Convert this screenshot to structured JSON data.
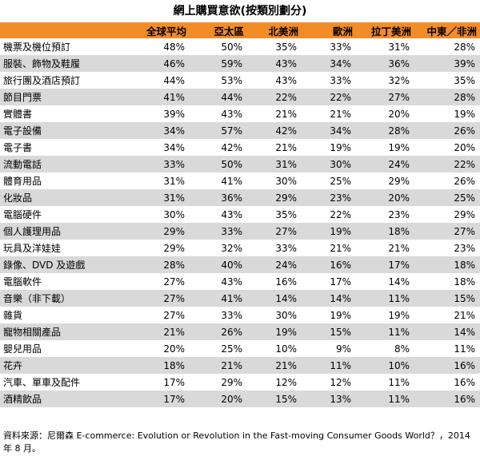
{
  "title": "網上購買意欲(按類別劃分)",
  "columns": [
    "",
    "全球平均",
    "亞太區",
    "北美洲",
    "歐洲",
    "拉丁美洲",
    "中東／非洲"
  ],
  "rows": [
    {
      "category": "機票及機位預訂",
      "values": [
        "48%",
        "50%",
        "35%",
        "33%",
        "31%",
        "28%"
      ]
    },
    {
      "category": "服裝、飾物及鞋履",
      "values": [
        "46%",
        "59%",
        "43%",
        "34%",
        "36%",
        "39%"
      ]
    },
    {
      "category": "旅行團及酒店預訂",
      "values": [
        "44%",
        "53%",
        "43%",
        "33%",
        "32%",
        "35%"
      ]
    },
    {
      "category": "節目門票",
      "values": [
        "41%",
        "44%",
        "22%",
        "22%",
        "27%",
        "28%"
      ]
    },
    {
      "category": "實體書",
      "values": [
        "39%",
        "43%",
        "21%",
        "21%",
        "20%",
        "19%"
      ]
    },
    {
      "category": "電子設備",
      "values": [
        "34%",
        "57%",
        "42%",
        "34%",
        "28%",
        "26%"
      ]
    },
    {
      "category": "電子書",
      "values": [
        "34%",
        "42%",
        "21%",
        "19%",
        "19%",
        "20%"
      ]
    },
    {
      "category": "流動電話",
      "values": [
        "33%",
        "50%",
        "31%",
        "30%",
        "24%",
        "22%"
      ]
    },
    {
      "category": "體育用品",
      "values": [
        "31%",
        "41%",
        "30%",
        "25%",
        "29%",
        "26%"
      ]
    },
    {
      "category": "化妝品",
      "values": [
        "31%",
        "36%",
        "29%",
        "23%",
        "20%",
        "25%"
      ]
    },
    {
      "category": "電腦硬件",
      "values": [
        "30%",
        "43%",
        "35%",
        "22%",
        "23%",
        "29%"
      ]
    },
    {
      "category": "個人護理用品",
      "values": [
        "29%",
        "33%",
        "27%",
        "19%",
        "18%",
        "27%"
      ]
    },
    {
      "category": "玩具及洋娃娃",
      "values": [
        "29%",
        "32%",
        "33%",
        "21%",
        "21%",
        "23%"
      ]
    },
    {
      "category": "錄像、DVD 及遊戲",
      "values": [
        "28%",
        "40%",
        "24%",
        "16%",
        "17%",
        "18%"
      ]
    },
    {
      "category": "電腦軟件",
      "values": [
        "27%",
        "43%",
        "16%",
        "17%",
        "14%",
        "18%"
      ]
    },
    {
      "category": "音樂（非下載）",
      "values": [
        "27%",
        "41%",
        "14%",
        "14%",
        "11%",
        "15%"
      ]
    },
    {
      "category": "雜貨",
      "values": [
        "27%",
        "33%",
        "30%",
        "19%",
        "19%",
        "21%"
      ]
    },
    {
      "category": "寵物相關產品",
      "values": [
        "21%",
        "26%",
        "19%",
        "15%",
        "11%",
        "14%"
      ]
    },
    {
      "category": "嬰兒用品",
      "values": [
        "20%",
        "25%",
        "10%",
        "9%",
        "8%",
        "11%"
      ]
    },
    {
      "category": "花卉",
      "values": [
        "18%",
        "21%",
        "21%",
        "11%",
        "10%",
        "16%"
      ]
    },
    {
      "category": "汽車、單車及配件",
      "values": [
        "17%",
        "29%",
        "12%",
        "12%",
        "11%",
        "16%"
      ]
    },
    {
      "category": "酒精飲品",
      "values": [
        "17%",
        "20%",
        "15%",
        "13%",
        "11%",
        "16%"
      ]
    }
  ],
  "source": "資料來源：尼爾森 E-commerce: Evolution or Revolution in the Fast-moving Consumer Goods World？，2014 年 8 月。",
  "colors": {
    "header_bg": "#f28c28",
    "stripe_bg": "#d9d9d9"
  }
}
